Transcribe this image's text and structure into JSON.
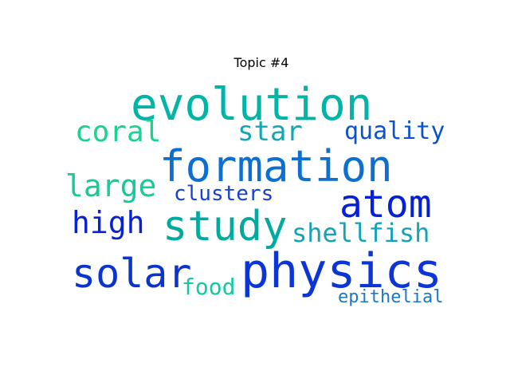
{
  "title": "Topic #4",
  "words": {
    "evolution": {
      "text": "evolution",
      "color": "#00b4a6"
    },
    "formation": {
      "text": "formation",
      "color": "#0d6fd1"
    },
    "study": {
      "text": "study",
      "color": "#00aaa0"
    },
    "physics": {
      "text": "physics",
      "color": "#0b35d6"
    },
    "atom": {
      "text": "atom",
      "color": "#0620d8"
    },
    "solar": {
      "text": "solar",
      "color": "#0b34cf"
    },
    "coral": {
      "text": "coral",
      "color": "#19d38c"
    },
    "star": {
      "text": "star",
      "color": "#12a7b3"
    },
    "quality": {
      "text": "quality",
      "color": "#0c52cc"
    },
    "large": {
      "text": "large",
      "color": "#18c99a"
    },
    "clusters": {
      "text": "clusters",
      "color": "#1640cf"
    },
    "high": {
      "text": "high",
      "color": "#0820d6"
    },
    "shellfish": {
      "text": "shellfish",
      "color": "#12a4b6"
    },
    "food": {
      "text": "food",
      "color": "#14c9a0"
    },
    "epithelial": {
      "text": "epithelial",
      "color": "#1a78c6"
    }
  }
}
